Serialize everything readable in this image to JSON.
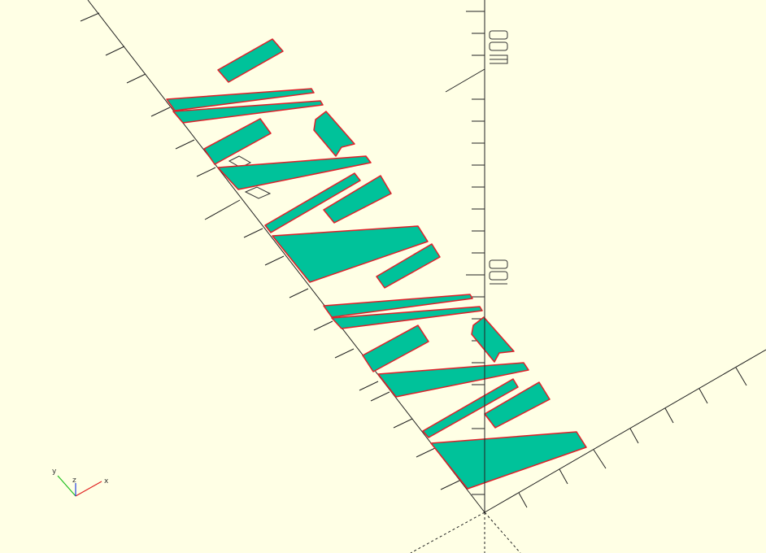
{
  "viewport": {
    "background": "#ffffe5",
    "part_fill": "#00c29a",
    "part_edge": "#e0202a"
  },
  "axes": {
    "y_tick_label_upper": "200",
    "y_tick_label_lower": "100"
  },
  "orientation_gizmo": {
    "x_label": "x",
    "y_label": "y",
    "z_label": "z",
    "x_color": "#e02020",
    "y_color": "#20c020",
    "z_color": "#2040e0"
  }
}
